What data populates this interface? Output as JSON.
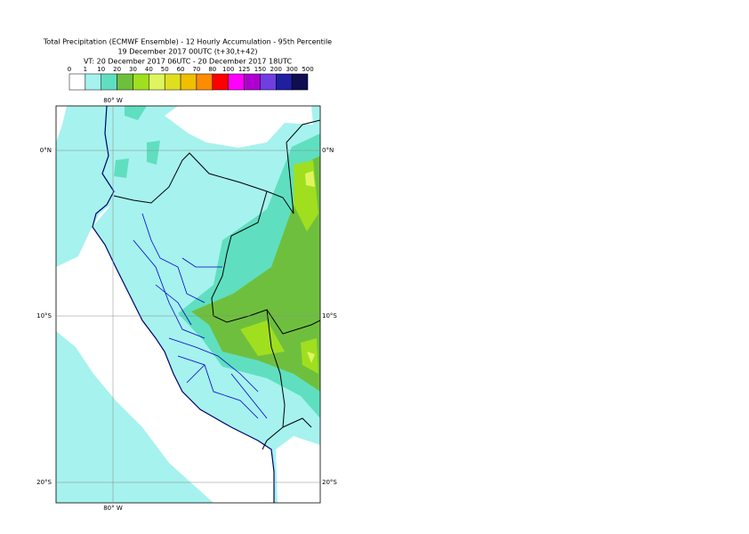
{
  "header": {
    "title_lines": [
      "Total Precipitation (ECMWF Ensemble) - 12 Hourly Accumulation - 95th Percentile",
      "19 December 2017 00UTC (t+30,t+42)",
      "VT: 20 December 2017 06UTC - 20 December 2017 18UTC"
    ]
  },
  "legend": {
    "labels": [
      0,
      1,
      10,
      20,
      30,
      40,
      50,
      60,
      70,
      80,
      100,
      125,
      150,
      200,
      300,
      500
    ],
    "colors": [
      "#ffffff",
      "#a6f2ee",
      "#5fdfc0",
      "#6fbf3f",
      "#9fdf1f",
      "#dff55f",
      "#dfdf1f",
      "#efbf00",
      "#ff8c00",
      "#ff0000",
      "#ff00ff",
      "#af00cf",
      "#6f3fdf",
      "#1f1f9f",
      "#0f0f4f"
    ]
  },
  "map": {
    "lat_labels": [
      "0°N",
      "10°S",
      "20°S"
    ],
    "lon_label": "80° W"
  }
}
